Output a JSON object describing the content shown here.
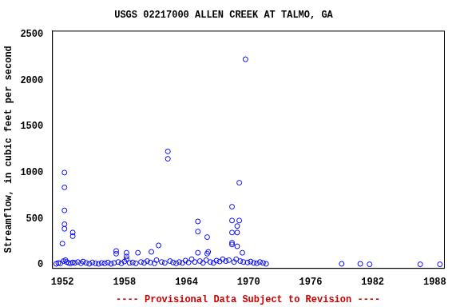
{
  "chart_data": {
    "type": "scatter",
    "title": "USGS 02217000 ALLEN CREEK AT TALMO, GA",
    "y_label": "Streamflow, in cubic feet per second",
    "annotations": [
      "---- Provisional Data Subject to Revision ----"
    ],
    "x": [
      1951.4,
      1951.6,
      1951.8,
      1952.0,
      1952.1,
      1952.2,
      1952.2,
      1952.2,
      1952.2,
      1952.2,
      1952.3,
      1952.4,
      1952.6,
      1952.8,
      1953.0,
      1953.0,
      1953.0,
      1953.2,
      1953.5,
      1953.8,
      1954.0,
      1954.3,
      1954.6,
      1954.9,
      1955.2,
      1955.5,
      1955.8,
      1956.1,
      1956.4,
      1956.7,
      1957.0,
      1957.2,
      1957.2,
      1957.4,
      1957.7,
      1958.0,
      1958.2,
      1958.2,
      1958.2,
      1958.5,
      1958.8,
      1959.1,
      1959.3,
      1959.6,
      1959.9,
      1960.2,
      1960.5,
      1960.6,
      1960.9,
      1961.1,
      1961.3,
      1961.6,
      1961.9,
      1962.2,
      1962.2,
      1962.4,
      1962.7,
      1963.0,
      1963.3,
      1963.6,
      1963.9,
      1964.2,
      1964.5,
      1964.8,
      1965.1,
      1965.1,
      1965.1,
      1965.3,
      1965.6,
      1965.9,
      1966.0,
      1966.0,
      1966.1,
      1966.3,
      1966.6,
      1966.9,
      1967.2,
      1967.5,
      1967.8,
      1968.1,
      1968.4,
      1968.4,
      1968.4,
      1968.4,
      1968.4,
      1968.6,
      1968.8,
      1968.9,
      1968.9,
      1968.9,
      1969.1,
      1969.1,
      1969.2,
      1969.4,
      1969.5,
      1969.7,
      1969.9,
      1970.2,
      1970.5,
      1970.8,
      1971.1,
      1971.4,
      1971.7,
      1979.0,
      1980.8,
      1981.7,
      1986.6,
      1988.5
    ],
    "values": [
      10,
      20,
      15,
      230,
      40,
      1000,
      840,
      590,
      440,
      390,
      50,
      30,
      20,
      15,
      25,
      350,
      310,
      20,
      30,
      15,
      35,
      20,
      10,
      25,
      15,
      10,
      20,
      15,
      25,
      10,
      20,
      150,
      120,
      30,
      15,
      35,
      130,
      90,
      60,
      20,
      25,
      15,
      130,
      30,
      20,
      40,
      25,
      140,
      15,
      50,
      210,
      30,
      20,
      1230,
      1150,
      40,
      25,
      15,
      30,
      20,
      45,
      25,
      60,
      30,
      470,
      360,
      130,
      40,
      20,
      50,
      300,
      120,
      140,
      30,
      20,
      45,
      35,
      60,
      40,
      50,
      630,
      480,
      350,
      240,
      220,
      30,
      60,
      350,
      420,
      200,
      890,
      480,
      40,
      130,
      30,
      2230,
      25,
      35,
      20,
      15,
      30,
      20,
      10,
      10,
      10,
      5,
      5,
      5
    ],
    "color": "#0000ff",
    "marker": "open circle",
    "xlim": [
      1951,
      1988.9
    ],
    "xticks": [
      1952,
      1958,
      1964,
      1970,
      1976,
      1982,
      1988
    ],
    "ylim": [
      -35,
      2540
    ],
    "yticks": [
      0,
      500,
      1000,
      1500,
      2000,
      2500
    ],
    "grid": false
  }
}
